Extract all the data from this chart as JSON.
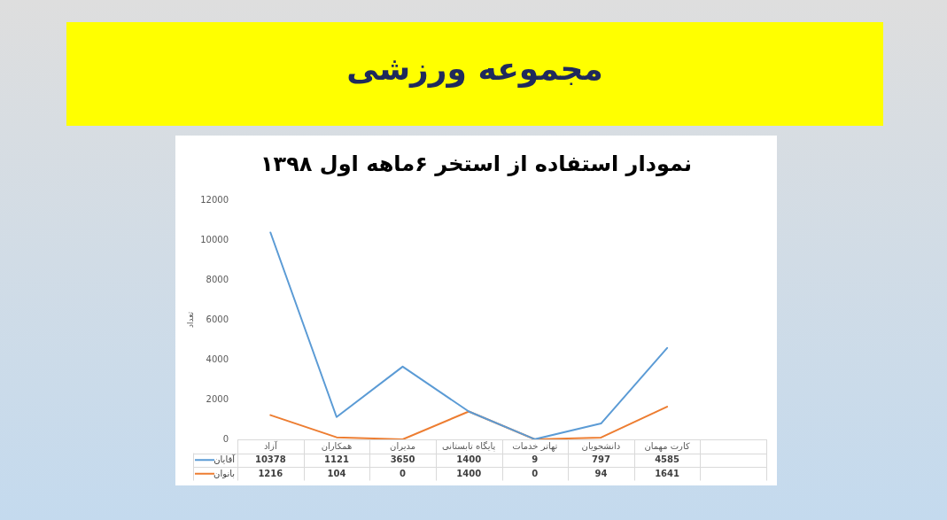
{
  "chart_data": {
    "type": "line",
    "title": "مجموعه ورزشی",
    "subtitle": "نمودار استفاده از استخر ۶ماهه اول ۱۳۹۸",
    "ylabel": "تعداد",
    "categories": [
      "آزاد",
      "همکاران",
      "مدیران",
      "پایگاه تابستانی",
      "تهاتر خدمات",
      "دانشجویان",
      "کارت مهمان",
      null
    ],
    "series": [
      {
        "name": "آقایان",
        "color": "#5b9bd5",
        "values": [
          10378,
          1121,
          3650,
          1400,
          9,
          797,
          4585,
          null
        ]
      },
      {
        "name": "بانوان",
        "color": "#ed7d31",
        "values": [
          1216,
          104,
          0,
          1400,
          0,
          94,
          1641,
          null
        ]
      }
    ],
    "ylim": [
      0,
      12000
    ],
    "yticks": [
      0,
      2000,
      4000,
      6000,
      8000,
      10000,
      12000
    ],
    "grid": false,
    "legend": "bottom left",
    "marker": "none",
    "line_style": "solid",
    "data_labels": true
  }
}
